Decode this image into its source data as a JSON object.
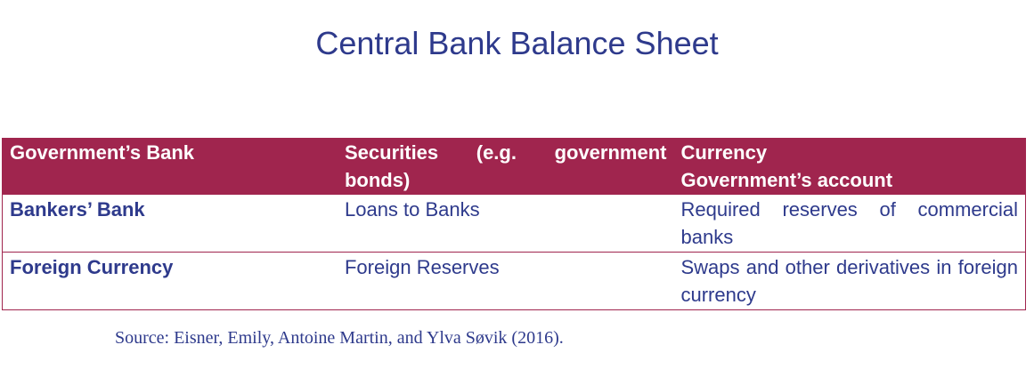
{
  "title": "Central Bank Balance Sheet",
  "table": {
    "header": {
      "col1": "Government’s Bank",
      "col2": "Securities (e.g. government bonds)",
      "col3_line1": "Currency",
      "col3_line2": "Government’s account"
    },
    "rows": [
      {
        "label": "Bankers’ Bank",
        "assets": "Loans to Banks",
        "liabilities": "Required reserves of commercial banks"
      },
      {
        "label": "Foreign Currency",
        "assets": "Foreign Reserves",
        "liabilities": "Swaps and other derivatives in foreign currency"
      }
    ]
  },
  "source": "Source: Eisner, Emily, Antoine Martin, and Ylva Søvik (2016)."
}
